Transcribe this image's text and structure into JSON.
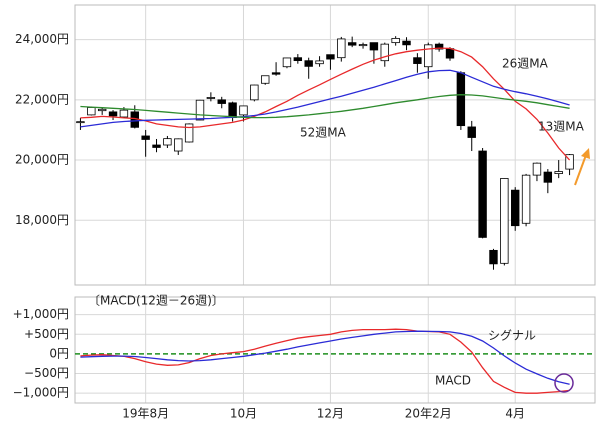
{
  "chart_data": [
    {
      "type": "candlestick",
      "categories": [
        null,
        null,
        null,
        null,
        null,
        null,
        "19年8月",
        null,
        null,
        null,
        null,
        null,
        null,
        null,
        null,
        "10月",
        null,
        null,
        null,
        null,
        null,
        null,
        null,
        "12月",
        null,
        null,
        null,
        null,
        null,
        null,
        null,
        null,
        "20年2月",
        null,
        null,
        null,
        null,
        null,
        null,
        null,
        "4月",
        null,
        null,
        null,
        null,
        null
      ],
      "open": [
        21250,
        21500,
        21640,
        21600,
        21430,
        21600,
        20800,
        20500,
        20500,
        20300,
        20600,
        21330,
        22050,
        22000,
        21900,
        21500,
        22000,
        22550,
        22900,
        23100,
        23400,
        23300,
        23200,
        23500,
        23400,
        23900,
        23800,
        23900,
        23300,
        23900,
        23950,
        23400,
        23100,
        23850,
        23700,
        22900,
        21100,
        20300,
        17000,
        16570,
        19000,
        17900,
        19500,
        19600,
        19550,
        19700
      ],
      "high": [
        21400,
        21780,
        21740,
        21660,
        21760,
        21820,
        21000,
        20700,
        20800,
        20720,
        21220,
        22000,
        22250,
        22100,
        21940,
        21800,
        22500,
        22800,
        23250,
        23400,
        23520,
        23400,
        23450,
        23500,
        24090,
        24100,
        23900,
        23900,
        23900,
        24115,
        24080,
        23550,
        23900,
        23900,
        23750,
        22950,
        21300,
        20400,
        17050,
        19400,
        19100,
        19540,
        19920,
        19700,
        20000,
        20200
      ],
      "low": [
        21000,
        21480,
        21500,
        21330,
        21400,
        21050,
        20110,
        20260,
        20400,
        20170,
        20580,
        21320,
        21950,
        21720,
        21280,
        21280,
        21950,
        22500,
        22800,
        23050,
        23200,
        22700,
        23100,
        23000,
        23270,
        23750,
        23700,
        23200,
        23100,
        23800,
        23650,
        22900,
        22700,
        23600,
        23300,
        21000,
        20300,
        17400,
        16358,
        16500,
        17650,
        17800,
        19300,
        18900,
        19400,
        19500
      ],
      "close": [
        21275,
        21746,
        21686,
        21466,
        21658,
        21087,
        20684,
        20418,
        20711,
        20704,
        21199,
        21988,
        22079,
        21878,
        21410,
        21798,
        22492,
        22800,
        22851,
        23391,
        23303,
        23112,
        23293,
        23354,
        24023,
        23816,
        23837,
        23656,
        23850,
        24041,
        23827,
        23205,
        23827,
        23687,
        23386,
        21143,
        20749,
        17431,
        16552,
        19389,
        17820,
        19498,
        19897,
        19262,
        19619,
        20179
      ],
      "up_color": "#ffffff",
      "down_color": "#000000",
      "series": [
        {
          "name": "13週MA",
          "color": "#e8292b",
          "values": [
            21400,
            21420,
            21450,
            21430,
            21400,
            21380,
            21300,
            21200,
            21150,
            21100,
            21080,
            21100,
            21150,
            21200,
            21250,
            21330,
            21450,
            21600,
            21780,
            21950,
            22150,
            22330,
            22500,
            22680,
            22850,
            23020,
            23180,
            23320,
            23430,
            23530,
            23600,
            23650,
            23690,
            23720,
            23710,
            23600,
            23420,
            23100,
            22700,
            22350,
            21950,
            21700,
            21350,
            20900,
            20400,
            20000
          ]
        },
        {
          "name": "26週MA",
          "color": "#2b2bd6",
          "values": [
            21100,
            21150,
            21200,
            21250,
            21280,
            21300,
            21320,
            21330,
            21340,
            21350,
            21360,
            21370,
            21380,
            21400,
            21420,
            21440,
            21480,
            21530,
            21600,
            21680,
            21760,
            21850,
            21940,
            22030,
            22120,
            22220,
            22320,
            22420,
            22530,
            22640,
            22750,
            22850,
            22930,
            22970,
            22980,
            22900,
            22750,
            22600,
            22450,
            22350,
            22270,
            22200,
            22120,
            22030,
            21930,
            21830
          ]
        },
        {
          "name": "52週MA",
          "color": "#2e8b2e",
          "values": [
            21780,
            21760,
            21740,
            21720,
            21700,
            21680,
            21650,
            21620,
            21590,
            21560,
            21530,
            21500,
            21480,
            21460,
            21440,
            21420,
            21410,
            21410,
            21420,
            21440,
            21470,
            21500,
            21540,
            21580,
            21620,
            21670,
            21720,
            21780,
            21840,
            21900,
            21950,
            22000,
            22060,
            22110,
            22150,
            22170,
            22160,
            22130,
            22080,
            22030,
            21990,
            21950,
            21900,
            21840,
            21780,
            21720
          ]
        }
      ],
      "ylim": [
        15850,
        25150
      ],
      "yticks": [
        {
          "value": 18000,
          "label": "18,000円"
        },
        {
          "value": 20000,
          "label": "20,000円"
        },
        {
          "value": 22000,
          "label": "22,000円"
        },
        {
          "value": 24000,
          "label": "24,000円"
        }
      ],
      "grid": true
    },
    {
      "type": "line",
      "title": "〔MACD(12週－26週)〕",
      "series": [
        {
          "name": "MACD",
          "color": "#e8292b",
          "values": [
            -50,
            -30,
            -20,
            -40,
            -60,
            -120,
            -200,
            -260,
            -290,
            -280,
            -220,
            -120,
            -40,
            0,
            30,
            60,
            120,
            200,
            270,
            340,
            400,
            440,
            470,
            500,
            560,
            600,
            620,
            620,
            620,
            630,
            620,
            580,
            570,
            560,
            500,
            300,
            50,
            -350,
            -700,
            -850,
            -980,
            -1000,
            -1000,
            -980,
            -960,
            -930
          ]
        },
        {
          "name": "シグナル",
          "color": "#2b2bd6",
          "values": [
            -80,
            -70,
            -60,
            -55,
            -55,
            -65,
            -90,
            -120,
            -150,
            -170,
            -180,
            -170,
            -150,
            -120,
            -90,
            -60,
            -20,
            20,
            70,
            120,
            180,
            230,
            280,
            330,
            380,
            420,
            460,
            500,
            530,
            560,
            570,
            580,
            575,
            570,
            560,
            520,
            450,
            330,
            150,
            -50,
            -230,
            -390,
            -510,
            -620,
            -710,
            -770
          ]
        }
      ],
      "ylim": [
        -1250,
        1450
      ],
      "yticks": [
        {
          "value": 1000,
          "label": "+1,000円"
        },
        {
          "value": 500,
          "label": "+500円"
        },
        {
          "value": 0,
          "label": "0円"
        },
        {
          "value": -500,
          "label": "−500円"
        },
        {
          "value": -1000,
          "label": "−1,000円"
        }
      ],
      "zero_line_color": "#1f8f1f",
      "grid": true
    }
  ]
}
